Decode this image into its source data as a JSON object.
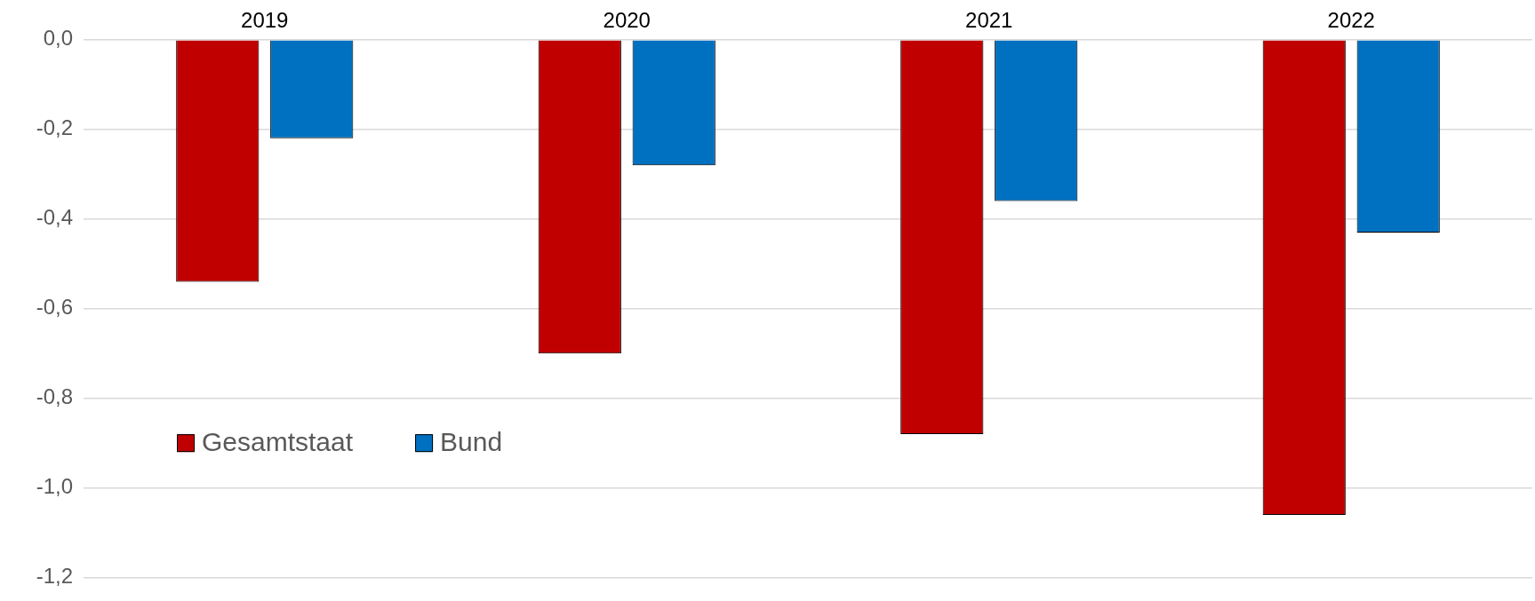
{
  "chart_data": {
    "type": "bar",
    "categories": [
      "2019",
      "2020",
      "2021",
      "2022"
    ],
    "series": [
      {
        "name": "Gesamtstaat",
        "color": "#c00000",
        "values": [
          -0.54,
          -0.7,
          -0.88,
          -1.06
        ]
      },
      {
        "name": "Bund",
        "color": "#0070c0",
        "values": [
          -0.22,
          -0.28,
          -0.36,
          -0.43
        ]
      }
    ],
    "ylim": [
      -1.2,
      0
    ],
    "yticks": [
      {
        "value": 0,
        "label": "0,0"
      },
      {
        "value": -0.2,
        "label": "-0,2"
      },
      {
        "value": -0.4,
        "label": "-0,4"
      },
      {
        "value": -0.6,
        "label": "-0,6"
      },
      {
        "value": -0.8,
        "label": "-0,8"
      },
      {
        "value": -1,
        "label": "-1,0"
      },
      {
        "value": -1.2,
        "label": "-1,2"
      }
    ],
    "grid": "y",
    "legend": "bottom left"
  }
}
